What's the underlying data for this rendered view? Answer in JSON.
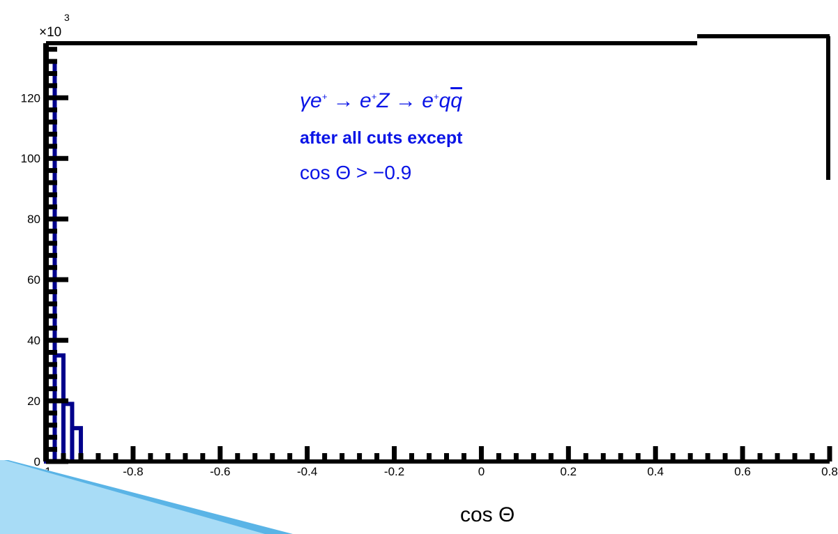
{
  "chart_data": {
    "type": "bar",
    "histogram": true,
    "x": [
      -0.99,
      -0.97,
      -0.95,
      -0.93,
      -0.91
    ],
    "values": [
      132000,
      35000,
      19000,
      11000,
      0
    ],
    "xlim": [
      -1,
      0.8
    ],
    "ylim": [
      0,
      138000
    ],
    "x_tick_labels": [
      "-1",
      "-0.8",
      "-0.6",
      "-0.4",
      "-0.2",
      "0",
      "0.2",
      "0.4",
      "0.6",
      "0.8"
    ],
    "y_tick_labels": [
      "0",
      "20",
      "40",
      "60",
      "80",
      "100",
      "120"
    ],
    "y_exponent": "×10",
    "y_exponent_power": "3",
    "xlabel": "cos Θ",
    "ylabel": "",
    "grid": false,
    "annotations": {
      "formula_parts": [
        "γe",
        "+",
        " → e",
        "+",
        "Z → e",
        "+",
        "q",
        "q"
      ],
      "cut_label": "after all cuts except",
      "cut_condition": "cos Θ > −0.9"
    },
    "colors": {
      "series": "#00008b",
      "frame": "#000000",
      "annotation": "#0a14e6",
      "decoration": "#5ab4e6"
    }
  }
}
